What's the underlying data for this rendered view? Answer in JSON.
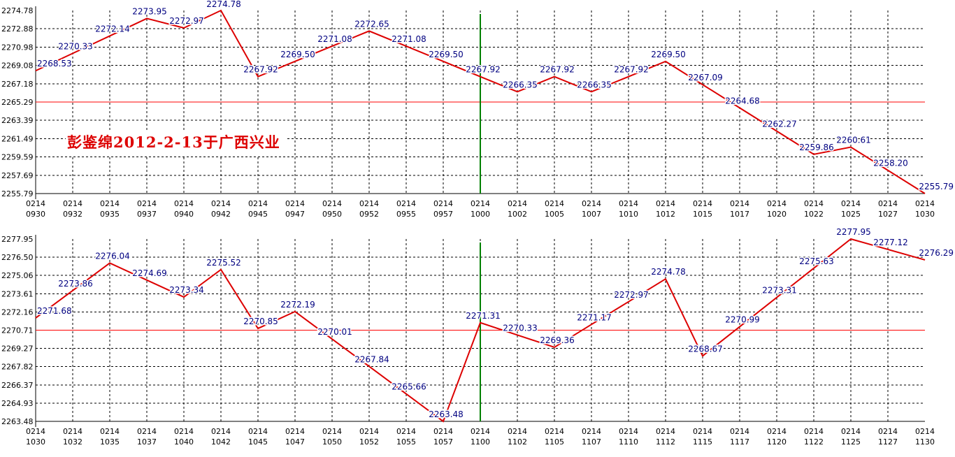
{
  "watermark": "彭鉴绵2012-2-13于广西兴业",
  "colors": {
    "line": "#dd0000",
    "reference": "#ff0000",
    "marker": "#008000",
    "grid": "#000000",
    "value_label": "#000080",
    "axis_text": "#000000"
  },
  "chart_data": [
    {
      "type": "line",
      "x": [
        "0930",
        "0932",
        "0935",
        "0937",
        "0940",
        "0942",
        "0945",
        "0947",
        "0950",
        "0952",
        "0955",
        "0957",
        "1000",
        "1002",
        "1005",
        "1007",
        "1010",
        "1012",
        "1015",
        "1017",
        "1020",
        "1022",
        "1025",
        "1027",
        "1030"
      ],
      "date_labels": [
        "0214",
        "0214",
        "0214",
        "0214",
        "0214",
        "0214",
        "0214",
        "0214",
        "0214",
        "0214",
        "0214",
        "0214",
        "0214",
        "0214",
        "0214",
        "0214",
        "0214",
        "0214",
        "0214",
        "0214",
        "0214",
        "0214",
        "0214",
        "0214",
        "0214"
      ],
      "values": [
        2268.53,
        2270.33,
        2272.14,
        2273.95,
        2272.97,
        2274.78,
        2267.92,
        2269.5,
        2271.08,
        2272.65,
        2271.08,
        2269.5,
        2267.92,
        2266.35,
        2267.92,
        2266.35,
        2267.92,
        2269.5,
        2267.09,
        2264.68,
        2262.27,
        2259.86,
        2260.61,
        2258.2,
        2255.79
      ],
      "y_ticks": [
        "2274.78",
        "2272.88",
        "2270.98",
        "2269.08",
        "2267.18",
        "2265.29",
        "2263.39",
        "2261.49",
        "2259.59",
        "2257.69",
        "2255.79"
      ],
      "ylim": [
        2255.79,
        2274.78
      ],
      "reference_line": 2265.29,
      "marker_x": "1000",
      "grid": true
    },
    {
      "type": "line",
      "x": [
        "1030",
        "1032",
        "1035",
        "1037",
        "1040",
        "1042",
        "1045",
        "1047",
        "1050",
        "1052",
        "1055",
        "1057",
        "1100",
        "1102",
        "1105",
        "1107",
        "1110",
        "1112",
        "1115",
        "1117",
        "1120",
        "1122",
        "1125",
        "1127",
        "1130"
      ],
      "date_labels": [
        "0214",
        "0214",
        "0214",
        "0214",
        "0214",
        "0214",
        "0214",
        "0214",
        "0214",
        "0214",
        "0214",
        "0214",
        "0214",
        "0214",
        "0214",
        "0214",
        "0214",
        "0214",
        "0214",
        "0214",
        "0214",
        "0214",
        "0214",
        "0214",
        "0214"
      ],
      "values": [
        2271.68,
        2273.86,
        2276.04,
        2274.69,
        2273.34,
        2275.52,
        2270.85,
        2272.19,
        2270.01,
        2267.84,
        2265.66,
        2263.48,
        2271.31,
        2270.33,
        2269.36,
        2271.17,
        2272.97,
        2274.78,
        2268.67,
        2270.99,
        2273.31,
        2275.63,
        2277.95,
        2277.12,
        2276.29
      ],
      "y_ticks": [
        "2277.95",
        "2276.50",
        "2275.06",
        "2273.61",
        "2272.16",
        "2270.71",
        "2269.27",
        "2267.82",
        "2266.37",
        "2264.93",
        "2263.48"
      ],
      "ylim": [
        2263.48,
        2277.95
      ],
      "reference_line": 2270.71,
      "marker_x": "1100",
      "grid": true
    }
  ]
}
